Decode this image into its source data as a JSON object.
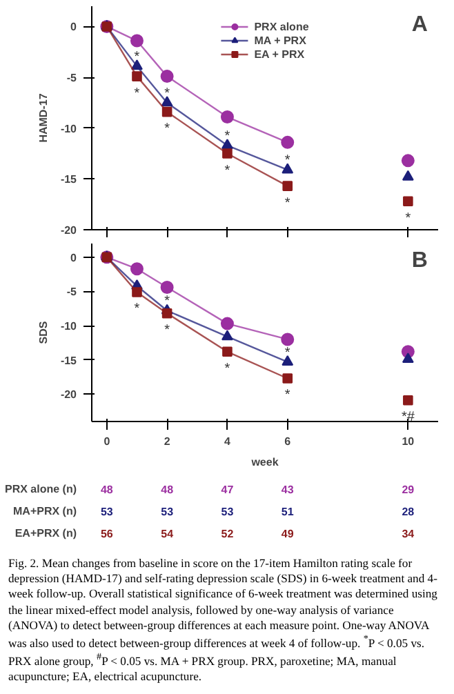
{
  "chart_data": [
    {
      "type": "line",
      "ylabel": "HAMD-17",
      "x": [
        0,
        1,
        2,
        4,
        6,
        10
      ],
      "xlim": [
        -0.5,
        11
      ],
      "xticks": [
        0,
        2,
        4,
        6,
        10
      ],
      "ylim": [
        -20,
        2
      ],
      "yticks": [
        0,
        -5,
        -10,
        -15,
        -20
      ],
      "tick_labels": "y",
      "grid": false,
      "legend": "top",
      "series": [
        {
          "name": "PRX alone",
          "color": "#9b2fa0",
          "marker": "circle",
          "values": [
            0,
            -1.4,
            -4.9,
            -8.9,
            -11.4,
            null
          ]
        },
        {
          "name": "MA + PRX",
          "color": "#1c1f7a",
          "marker": "triangle",
          "values": [
            0,
            -3.9,
            -7.5,
            -11.7,
            -14.1,
            null
          ]
        },
        {
          "name": "EA + PRX",
          "color": "#8b1a1a",
          "marker": "square",
          "values": [
            0,
            -4.9,
            -8.4,
            -12.5,
            -15.7,
            null
          ]
        },
        {
          "type": "scatter",
          "color": "#9b2fa0",
          "marker": "circle",
          "values": [
            null,
            null,
            null,
            null,
            null,
            -13.2
          ]
        },
        {
          "type": "scatter",
          "color": "#1c1f7a",
          "marker": "triangle",
          "values": [
            null,
            null,
            null,
            null,
            null,
            -14.8
          ]
        },
        {
          "type": "scatter",
          "color": "#8b1a1a",
          "marker": "square",
          "values": [
            null,
            null,
            null,
            null,
            null,
            -17.2
          ]
        }
      ],
      "annotations": [
        "A",
        {
          "text": "*",
          "x": 1,
          "y": -3.9
        },
        {
          "text": "*",
          "x": 1,
          "y": -4.9
        },
        {
          "text": "*",
          "x": 2,
          "y": -7.5
        },
        {
          "text": "*",
          "x": 2,
          "y": -8.4
        },
        {
          "text": "*",
          "x": 4,
          "y": -11.7
        },
        {
          "text": "*",
          "x": 4,
          "y": -12.5
        },
        {
          "text": "*",
          "x": 6,
          "y": -14.1
        },
        {
          "text": "*",
          "x": 6,
          "y": -15.7
        },
        {
          "text": "*",
          "x": 10,
          "y": -17.2
        }
      ]
    },
    {
      "type": "line",
      "ylabel": "SDS",
      "xlabel": "week",
      "x": [
        0,
        1,
        2,
        4,
        6,
        10
      ],
      "xlim": [
        -0.5,
        11
      ],
      "xticks": [
        0,
        2,
        4,
        6,
        10
      ],
      "ylim": [
        -24,
        2
      ],
      "yticks": [
        0,
        -5,
        -10,
        -15,
        -20
      ],
      "grid": false,
      "series": [
        {
          "color": "#9b2fa0",
          "marker": "circle",
          "values": [
            0,
            -1.7,
            -4.4,
            -9.7,
            -12,
            null
          ]
        },
        {
          "color": "#1c1f7a",
          "marker": "triangle",
          "values": [
            0,
            -4.2,
            -7.8,
            -11.6,
            -15.3,
            null
          ]
        },
        {
          "color": "#8b1a1a",
          "marker": "square",
          "values": [
            0,
            -5.1,
            -8.2,
            -13.8,
            -17.7,
            null
          ]
        },
        {
          "type": "scatter",
          "color": "#9b2fa0",
          "marker": "circle",
          "values": [
            null,
            null,
            null,
            null,
            null,
            -13.8
          ]
        },
        {
          "type": "scatter",
          "color": "#1c1f7a",
          "marker": "triangle",
          "values": [
            null,
            null,
            null,
            null,
            null,
            -14.9
          ]
        },
        {
          "type": "scatter",
          "color": "#8b1a1a",
          "marker": "square",
          "values": [
            null,
            null,
            null,
            null,
            null,
            -20.9
          ]
        }
      ],
      "annotations": [
        "B",
        {
          "text": "*",
          "x": 1,
          "y": -5.1
        },
        {
          "text": "*",
          "x": 2,
          "y": -7.8
        },
        {
          "text": "*",
          "x": 2,
          "y": -8.2
        },
        {
          "text": "*",
          "x": 4,
          "y": -13.8
        },
        {
          "text": "*",
          "x": 6,
          "y": -15.3
        },
        {
          "text": "*",
          "x": 6,
          "y": -17.7
        },
        {
          "text": "*#",
          "x": 10,
          "y": -20.9
        }
      ]
    },
    {
      "type": "heatmap",
      "categories": [
        "0",
        "2",
        "4",
        "6",
        "10"
      ],
      "tick_labels": "y",
      "data_labels": true,
      "y_categories": [
        "PRX alone (n)",
        "MA+PRX (n)",
        "EA+PRX (n)"
      ],
      "colors": [
        "#9b2fa0",
        "#1c1f7a",
        "#8b1a1a"
      ],
      "cells": [
        [
          48,
          48,
          47,
          43,
          29
        ],
        [
          53,
          53,
          53,
          51,
          28
        ],
        [
          56,
          54,
          52,
          49,
          34
        ]
      ],
      "annotations": [
        "Fig. 2. Mean changes from baseline in score on the 17-item Hamilton rating scale for depression (HAMD-17) and self-rating depression scale (SDS) in 6-week treatment and 4-week follow-up. Overall statistical significance of 6-week treatment was determined using the linear mixed-effect model analysis, followed by one-way analysis of variance (ANOVA) to detect between-group differences at each measure point. One-way ANOVA was also used to detect between-group differences at week 4 of follow-up. $^{*}$P < 0.05 vs. PRX alone group, $^{#}$P < 0.05 vs. MA + PRX group. PRX, paroxetine; MA, manual acupuncture; EA, electrical acupuncture."
      ]
    }
  ]
}
